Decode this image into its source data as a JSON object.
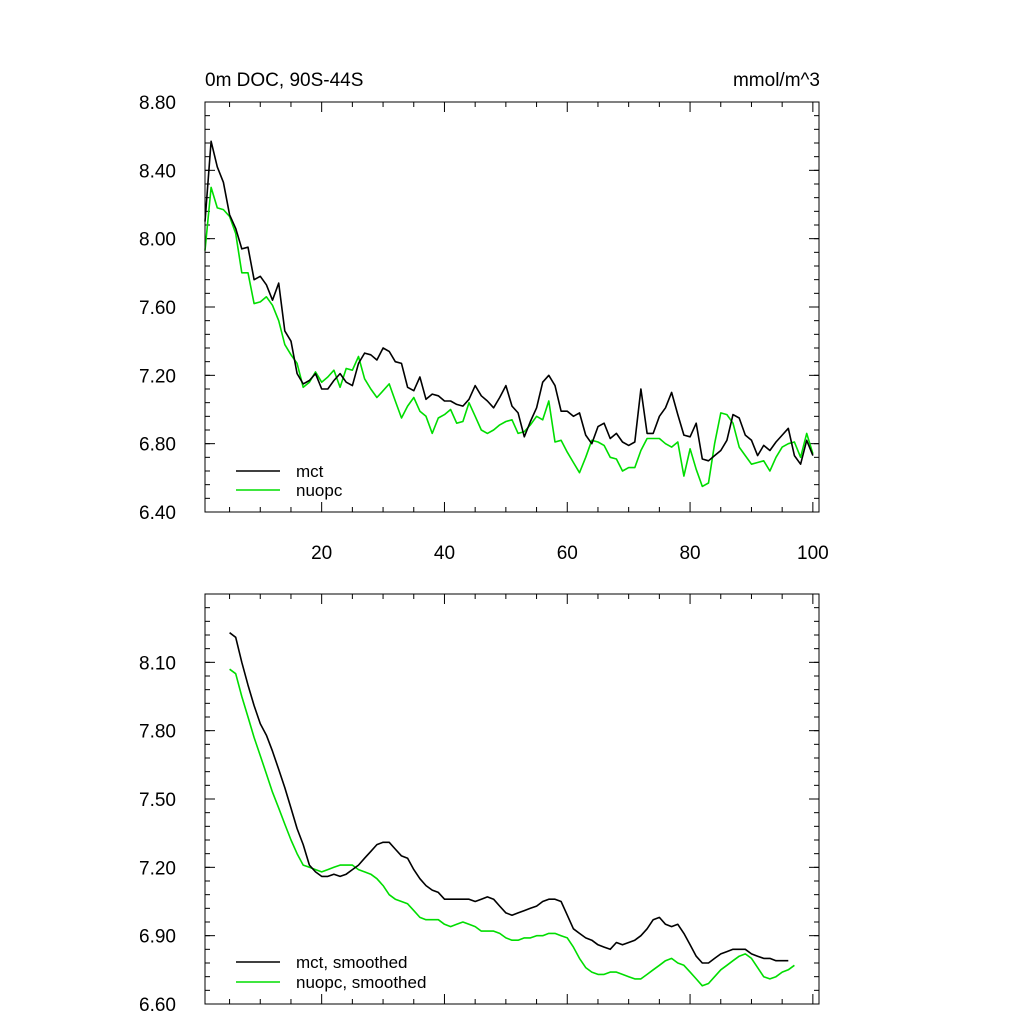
{
  "chart_data": [
    {
      "type": "line",
      "title": "0m DOC, 90S-44S",
      "units": "mmol/m^3",
      "xlim": [
        1,
        101
      ],
      "ylim": [
        6.4,
        8.8
      ],
      "x_ticks": [
        20,
        40,
        60,
        80,
        100
      ],
      "x_tick_labels": [
        "20",
        "40",
        "60",
        "80",
        "100"
      ],
      "y_ticks": [
        6.4,
        6.8,
        7.2,
        7.6,
        8.0,
        8.4,
        8.8
      ],
      "y_tick_labels": [
        "6.40",
        "6.80",
        "7.20",
        "7.60",
        "8.00",
        "8.40",
        "8.80"
      ],
      "legend_position": "bottom-left",
      "series": [
        {
          "name": "mct",
          "color": "#000000",
          "values": [
            8.1,
            8.57,
            8.42,
            8.33,
            8.14,
            8.06,
            7.94,
            7.95,
            7.76,
            7.78,
            7.73,
            7.64,
            7.74,
            7.46,
            7.4,
            7.21,
            7.15,
            7.17,
            7.21,
            7.12,
            7.12,
            7.17,
            7.21,
            7.16,
            7.14,
            7.27,
            7.33,
            7.32,
            7.29,
            7.36,
            7.34,
            7.28,
            7.27,
            7.13,
            7.11,
            7.19,
            7.06,
            7.09,
            7.08,
            7.05,
            7.05,
            7.03,
            7.02,
            7.06,
            7.14,
            7.08,
            7.05,
            7.01,
            7.07,
            7.14,
            7.02,
            6.98,
            6.84,
            6.93,
            7.01,
            7.16,
            7.2,
            7.14,
            6.99,
            6.99,
            6.96,
            6.98,
            6.85,
            6.8,
            6.9,
            6.92,
            6.83,
            6.86,
            6.81,
            6.79,
            6.81,
            7.12,
            6.86,
            6.86,
            6.96,
            7.01,
            7.1,
            6.97,
            6.85,
            6.84,
            6.92,
            6.71,
            6.7,
            6.73,
            6.76,
            6.82,
            6.97,
            6.95,
            6.85,
            6.82,
            6.73,
            6.79,
            6.76,
            6.81,
            6.85,
            6.89,
            6.73,
            6.68,
            6.82,
            6.73
          ]
        },
        {
          "name": "nuopc",
          "color": "#00dd00",
          "values": [
            7.93,
            8.3,
            8.18,
            8.17,
            8.13,
            8.03,
            7.8,
            7.8,
            7.62,
            7.63,
            7.66,
            7.61,
            7.52,
            7.38,
            7.32,
            7.27,
            7.13,
            7.16,
            7.22,
            7.16,
            7.19,
            7.23,
            7.13,
            7.24,
            7.23,
            7.31,
            7.18,
            7.12,
            7.07,
            7.11,
            7.15,
            7.05,
            6.95,
            7.02,
            7.07,
            6.99,
            6.96,
            6.86,
            6.95,
            6.97,
            7.0,
            6.92,
            6.93,
            7.04,
            6.96,
            6.88,
            6.86,
            6.88,
            6.91,
            6.93,
            6.94,
            6.86,
            6.87,
            6.91,
            6.96,
            6.94,
            7.05,
            6.81,
            6.82,
            6.75,
            6.69,
            6.63,
            6.72,
            6.82,
            6.81,
            6.79,
            6.72,
            6.71,
            6.64,
            6.66,
            6.66,
            6.76,
            6.83,
            6.83,
            6.83,
            6.8,
            6.78,
            6.81,
            6.61,
            6.77,
            6.65,
            6.55,
            6.57,
            6.8,
            6.98,
            6.97,
            6.92,
            6.78,
            6.73,
            6.68,
            6.69,
            6.7,
            6.64,
            6.72,
            6.78,
            6.8,
            6.81,
            6.72,
            6.86,
            6.74
          ]
        }
      ]
    },
    {
      "type": "line",
      "title": "",
      "units": "",
      "xlim": [
        1,
        101
      ],
      "ylim": [
        6.6,
        8.4
      ],
      "x_ticks": [
        20,
        40,
        60,
        80,
        100
      ],
      "x_tick_labels": [],
      "y_ticks": [
        6.6,
        6.9,
        7.2,
        7.5,
        7.8,
        8.1
      ],
      "y_tick_labels": [
        "6.60",
        "6.90",
        "7.20",
        "7.50",
        "7.80",
        "8.10"
      ],
      "legend_position": "bottom-left",
      "series": [
        {
          "name": "mct, smoothed",
          "color": "#000000",
          "start_x": 5,
          "values": [
            8.23,
            8.21,
            8.1,
            8.0,
            7.91,
            7.83,
            7.78,
            7.71,
            7.63,
            7.55,
            7.46,
            7.37,
            7.3,
            7.21,
            7.18,
            7.16,
            7.16,
            7.17,
            7.16,
            7.17,
            7.19,
            7.21,
            7.24,
            7.27,
            7.3,
            7.31,
            7.31,
            7.28,
            7.25,
            7.24,
            7.19,
            7.15,
            7.12,
            7.1,
            7.09,
            7.06,
            7.06,
            7.06,
            7.06,
            7.06,
            7.05,
            7.06,
            7.07,
            7.06,
            7.03,
            7.0,
            6.99,
            7.0,
            7.01,
            7.02,
            7.03,
            7.05,
            7.06,
            7.06,
            7.05,
            6.99,
            6.93,
            6.91,
            6.89,
            6.88,
            6.86,
            6.85,
            6.84,
            6.87,
            6.86,
            6.87,
            6.88,
            6.9,
            6.93,
            6.97,
            6.98,
            6.95,
            6.94,
            6.95,
            6.91,
            6.86,
            6.81,
            6.78,
            6.78,
            6.8,
            6.82,
            6.83,
            6.84,
            6.84,
            6.84,
            6.82,
            6.81,
            6.8,
            6.8,
            6.79,
            6.79,
            6.79
          ]
        },
        {
          "name": "nuopc, smoothed",
          "color": "#00dd00",
          "start_x": 5,
          "values": [
            8.07,
            8.05,
            7.95,
            7.86,
            7.77,
            7.69,
            7.61,
            7.53,
            7.46,
            7.39,
            7.32,
            7.26,
            7.21,
            7.2,
            7.19,
            7.18,
            7.19,
            7.2,
            7.21,
            7.21,
            7.21,
            7.19,
            7.18,
            7.17,
            7.15,
            7.12,
            7.08,
            7.06,
            7.05,
            7.04,
            7.01,
            6.98,
            6.97,
            6.97,
            6.97,
            6.95,
            6.94,
            6.95,
            6.96,
            6.95,
            6.94,
            6.92,
            6.92,
            6.92,
            6.91,
            6.89,
            6.88,
            6.88,
            6.89,
            6.89,
            6.9,
            6.9,
            6.91,
            6.91,
            6.9,
            6.89,
            6.85,
            6.8,
            6.76,
            6.74,
            6.73,
            6.73,
            6.74,
            6.74,
            6.73,
            6.72,
            6.71,
            6.71,
            6.73,
            6.75,
            6.77,
            6.79,
            6.8,
            6.78,
            6.77,
            6.74,
            6.71,
            6.68,
            6.69,
            6.72,
            6.75,
            6.77,
            6.79,
            6.81,
            6.82,
            6.8,
            6.76,
            6.72,
            6.71,
            6.72,
            6.74,
            6.75,
            6.77
          ]
        }
      ]
    }
  ]
}
